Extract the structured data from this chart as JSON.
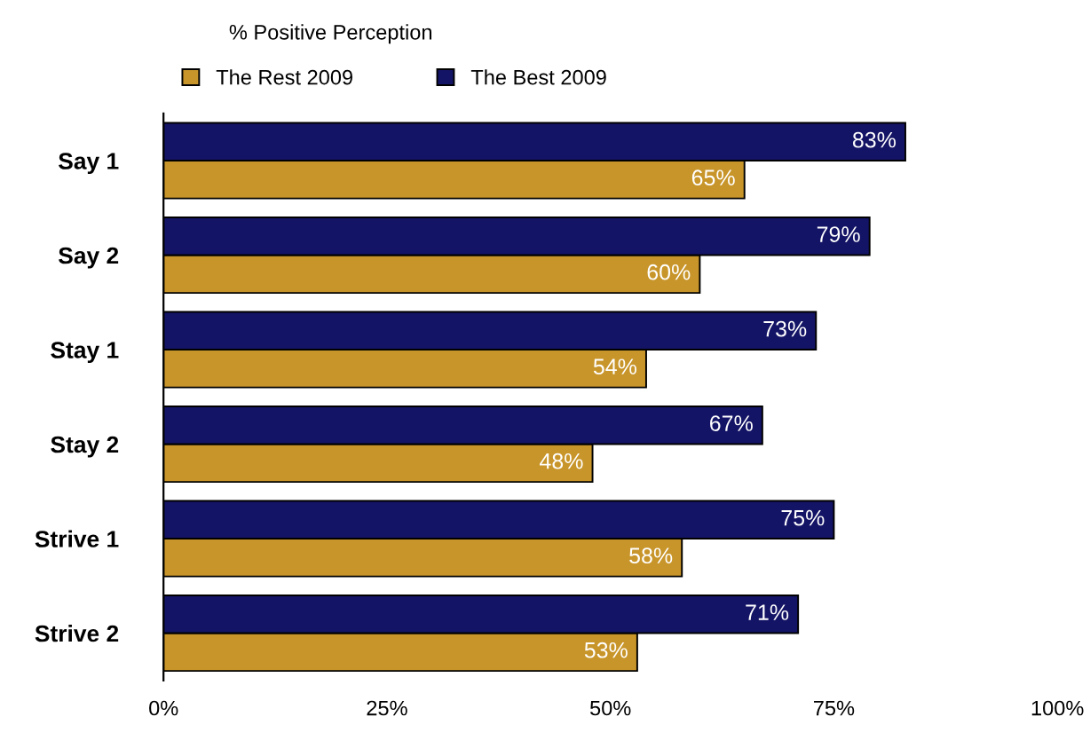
{
  "chart_data": {
    "type": "bar",
    "orientation": "horizontal",
    "title": "% Positive Perception",
    "categories": [
      "Say 1",
      "Say 2",
      "Stay 1",
      "Stay 2",
      "Strive 1",
      "Strive 2"
    ],
    "series": [
      {
        "name": "The Rest 2009",
        "color": "#c8952a",
        "values": [
          65,
          60,
          54,
          48,
          58,
          53
        ],
        "value_labels": [
          "65%",
          "60%",
          "54%",
          "48%",
          "58%",
          "53%"
        ]
      },
      {
        "name": "The Best 2009",
        "color": "#141466",
        "values": [
          83,
          79,
          73,
          67,
          75,
          71
        ],
        "value_labels": [
          "83%",
          "79%",
          "73%",
          "67%",
          "75%",
          "71%"
        ]
      }
    ],
    "xlim": [
      0,
      100
    ],
    "xticks": [
      {
        "value": 0,
        "label": "0%"
      },
      {
        "value": 25,
        "label": "25%"
      },
      {
        "value": 50,
        "label": "50%"
      },
      {
        "value": 75,
        "label": "75%"
      },
      {
        "value": 100,
        "label": "100%"
      }
    ],
    "grid": false,
    "legend": "top"
  }
}
